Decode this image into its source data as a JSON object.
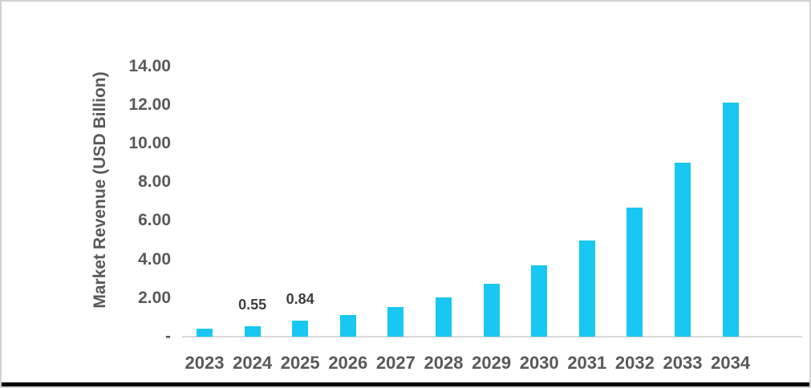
{
  "chart_data": {
    "type": "bar",
    "title": "",
    "xlabel": "",
    "ylabel": "Market Revenue (USD Billion)",
    "categories": [
      "2023",
      "2024",
      "2025",
      "2026",
      "2027",
      "2028",
      "2029",
      "2030",
      "2031",
      "2032",
      "2033",
      "2034"
    ],
    "values": [
      0.41,
      0.55,
      0.84,
      1.13,
      1.52,
      2.04,
      2.75,
      3.7,
      4.97,
      6.69,
      9.0,
      12.1
    ],
    "visible_value_labels": [
      {
        "category": "2024",
        "text": "0.55"
      },
      {
        "category": "2025",
        "text": "0.84"
      }
    ],
    "ylim": [
      0,
      14
    ],
    "yticks": {
      "values": [
        0,
        2,
        4,
        6,
        8,
        10,
        12,
        14
      ],
      "labels": [
        "-",
        "2.00",
        "4.00",
        "6.00",
        "8.00",
        "10.00",
        "12.00",
        "14.00"
      ]
    },
    "grid": false,
    "legend": "none",
    "colors": {
      "bar": "#18c7f2",
      "axis_text": "#595959",
      "value_label_text": "#3f3f3f",
      "axis_line": "#d9d9d9",
      "frame_border": "#d2d2d2",
      "bottom_strip": "#0a0a0a",
      "background": "#ffffff"
    }
  }
}
